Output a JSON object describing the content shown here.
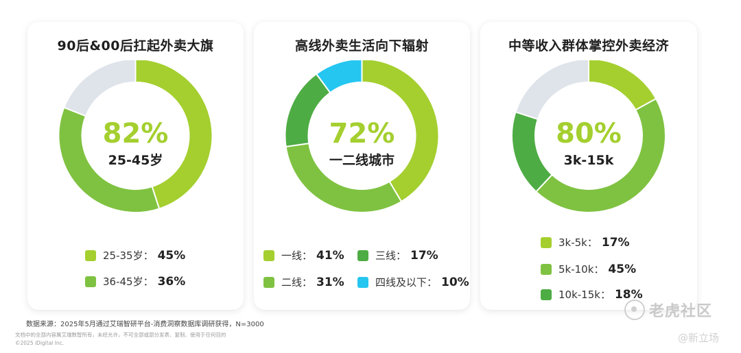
{
  "chart_data": [
    {
      "type": "pie",
      "title": "90后&00后扛起外卖大旗",
      "center_value": "82%",
      "center_label": "25-45岁",
      "slices": [
        {
          "label": "25-35岁",
          "value": 45,
          "color": "#a4cf2f",
          "legend": true
        },
        {
          "label": "36-45岁",
          "value": 36,
          "color": "#7fc241",
          "legend": true
        },
        {
          "label": "",
          "value": 19,
          "color": "#dfe3ea",
          "legend": false
        }
      ],
      "legend_values": [
        "45%",
        "36%"
      ],
      "legend_sep": "："
    },
    {
      "type": "pie",
      "title": "高线外卖生活向下辐射",
      "center_value": "72%",
      "center_label": "一二线城市",
      "slices": [
        {
          "label": "一线",
          "value": 41,
          "color": "#a4cf2f",
          "legend": true
        },
        {
          "label": "二线",
          "value": 31,
          "color": "#7fc241",
          "legend": true
        },
        {
          "label": "三线",
          "value": 17,
          "color": "#4eac44",
          "legend": true
        },
        {
          "label": "四线及以下",
          "value": 10,
          "color": "#25c6f0",
          "legend": true
        }
      ],
      "legend_values": [
        "41%",
        "31%",
        "17%",
        "10%"
      ],
      "legend_sep": "："
    },
    {
      "type": "pie",
      "title": "中等收入群体掌控外卖经济",
      "center_value": "80%",
      "center_label": "3k-15k",
      "slices": [
        {
          "label": "3k-5k",
          "value": 17,
          "color": "#a4cf2f",
          "legend": true
        },
        {
          "label": "5k-10k",
          "value": 45,
          "color": "#7fc241",
          "legend": true
        },
        {
          "label": "10k-15k",
          "value": 18,
          "color": "#4eac44",
          "legend": true
        },
        {
          "label": "",
          "value": 20,
          "color": "#dfe3ea",
          "legend": false
        }
      ],
      "legend_values": [
        "17%",
        "45%",
        "18%"
      ],
      "legend_sep": "："
    }
  ],
  "footer": {
    "source": "数据来源：2025年5月通过艾瑞智研平台-消费洞察数据库调研获得，N=3000",
    "note1": "文档中的全部内容属艾瑞数智所有，未经允许，不可全部或部分发表、复制、使用于任何目的",
    "note2": "©2025 iDigital Inc."
  },
  "watermarks": {
    "community": "老虎社区",
    "brand": "@新立场"
  },
  "colors": {
    "center_value": "#a4cf2f",
    "center_label": "#1f1f1f"
  }
}
